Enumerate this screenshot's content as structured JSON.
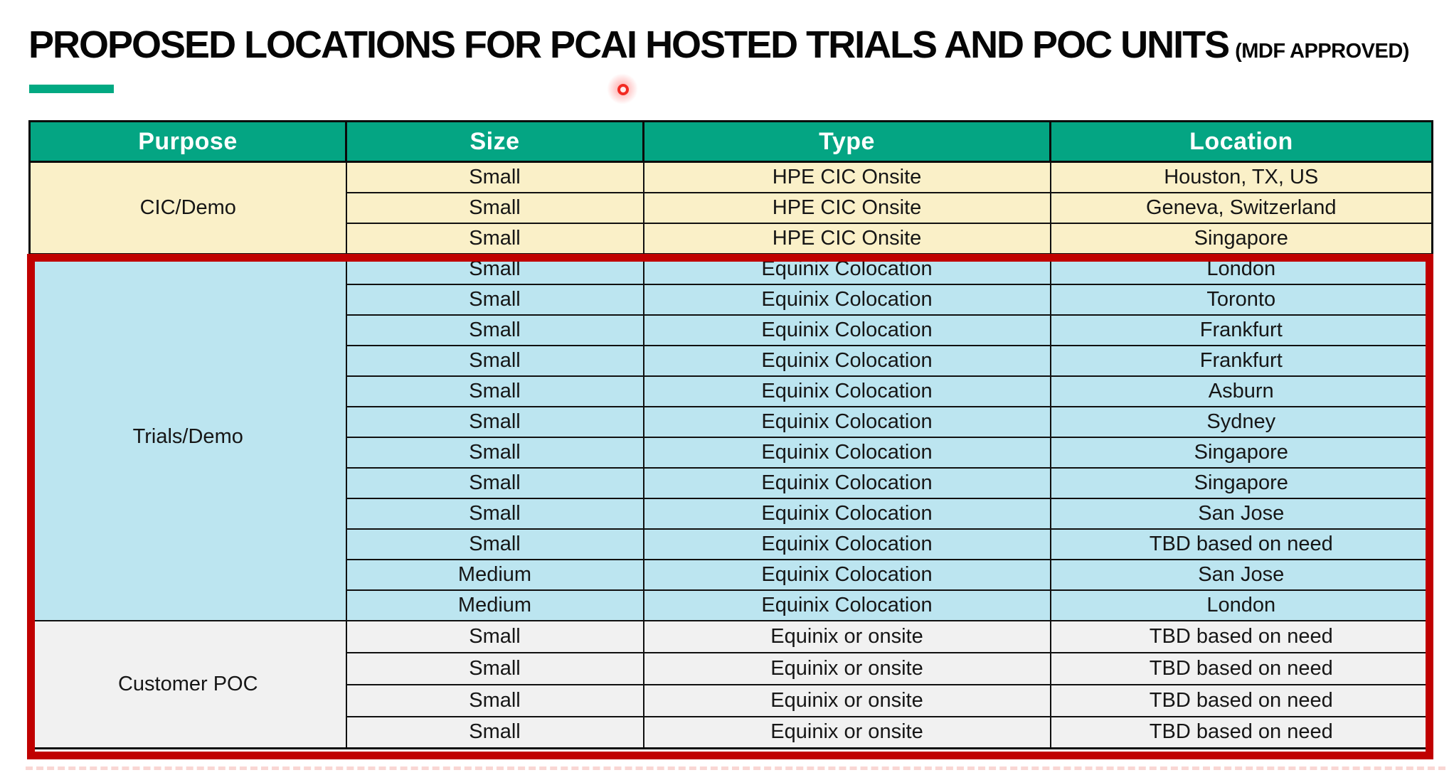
{
  "title": {
    "main": "PROPOSED LOCATIONS FOR PCAI HOSTED TRIALS AND POC UNITS",
    "suffix": "(MDF APPROVED)"
  },
  "accent": {
    "underline_color": "#01A982"
  },
  "pointer": {
    "name": "laser-pointer-dot",
    "color": "#F22A22"
  },
  "table": {
    "header_bg": "#04A583",
    "header_text_color": "#FFFFFF",
    "grid_color": "#0A0A0A",
    "highlight_border_color": "#C00000",
    "headers": [
      "Purpose",
      "Size",
      "Type",
      "Location"
    ],
    "sections": [
      {
        "purpose": "CIC/Demo",
        "bg": "#FAF0C8",
        "highlighted": false,
        "rows": [
          {
            "size": "Small",
            "type": "HPE CIC Onsite",
            "location": "Houston, TX, US"
          },
          {
            "size": "Small",
            "type": "HPE CIC Onsite",
            "location": "Geneva, Switzerland"
          },
          {
            "size": "Small",
            "type": "HPE CIC Onsite",
            "location": "Singapore"
          }
        ]
      },
      {
        "purpose": "Trials/Demo",
        "bg": "#BCE5F0",
        "highlighted": true,
        "rows": [
          {
            "size": "Small",
            "type": "Equinix Colocation",
            "location": "London"
          },
          {
            "size": "Small",
            "type": "Equinix Colocation",
            "location": "Toronto"
          },
          {
            "size": "Small",
            "type": "Equinix Colocation",
            "location": "Frankfurt"
          },
          {
            "size": "Small",
            "type": "Equinix Colocation",
            "location": "Frankfurt"
          },
          {
            "size": "Small",
            "type": "Equinix Colocation",
            "location": "Asburn"
          },
          {
            "size": "Small",
            "type": "Equinix Colocation",
            "location": "Sydney"
          },
          {
            "size": "Small",
            "type": "Equinix Colocation",
            "location": "Singapore"
          },
          {
            "size": "Small",
            "type": "Equinix Colocation",
            "location": "Singapore"
          },
          {
            "size": "Small",
            "type": "Equinix Colocation",
            "location": "San Jose"
          },
          {
            "size": "Small",
            "type": "Equinix Colocation",
            "location": "TBD based on need"
          },
          {
            "size": "Medium",
            "type": "Equinix Colocation",
            "location": "San Jose"
          },
          {
            "size": "Medium",
            "type": "Equinix Colocation",
            "location": "London"
          }
        ]
      },
      {
        "purpose": "Customer POC",
        "bg": "#F1F1F1",
        "highlighted": true,
        "rows": [
          {
            "size": "Small",
            "type": "Equinix or onsite",
            "location": "TBD based on need"
          },
          {
            "size": "Small",
            "type": "Equinix or onsite",
            "location": "TBD based on need"
          },
          {
            "size": "Small",
            "type": "Equinix or onsite",
            "location": "TBD based on need"
          },
          {
            "size": "Small",
            "type": "Equinix or onsite",
            "location": "TBD based on need"
          }
        ]
      }
    ]
  }
}
